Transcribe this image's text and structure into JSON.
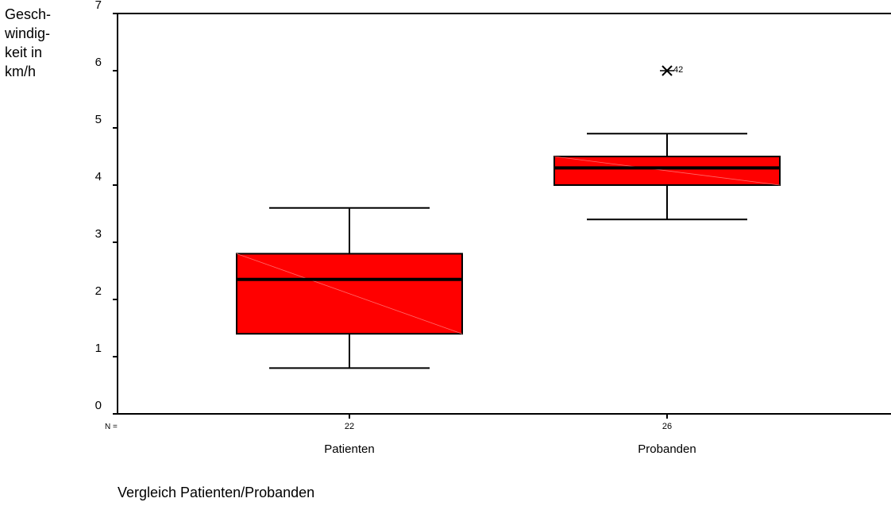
{
  "chart_data": {
    "type": "box",
    "ylabel": "Gesch-\nwindig-\nkeit in\nkm/h",
    "xlabel": "Vergleich Patienten/Probanden",
    "ylim": [
      0,
      7
    ],
    "yticks": [
      0,
      1,
      2,
      3,
      4,
      5,
      6,
      7
    ],
    "n_label": "N =",
    "categories": [
      "Patienten",
      "Probanden"
    ],
    "boxes": [
      {
        "label": "Patienten",
        "n": "22",
        "whisker_low": 0.8,
        "q1": 1.4,
        "median": 2.35,
        "q3": 2.8,
        "whisker_high": 3.6,
        "outliers": []
      },
      {
        "label": "Probanden",
        "n": "26",
        "whisker_low": 3.4,
        "q1": 4.0,
        "median": 4.3,
        "q3": 4.5,
        "whisker_high": 4.9,
        "outliers": [
          {
            "value": 6.0,
            "label": "42"
          }
        ]
      }
    ],
    "box_color": "#ff0000",
    "grid": false
  }
}
